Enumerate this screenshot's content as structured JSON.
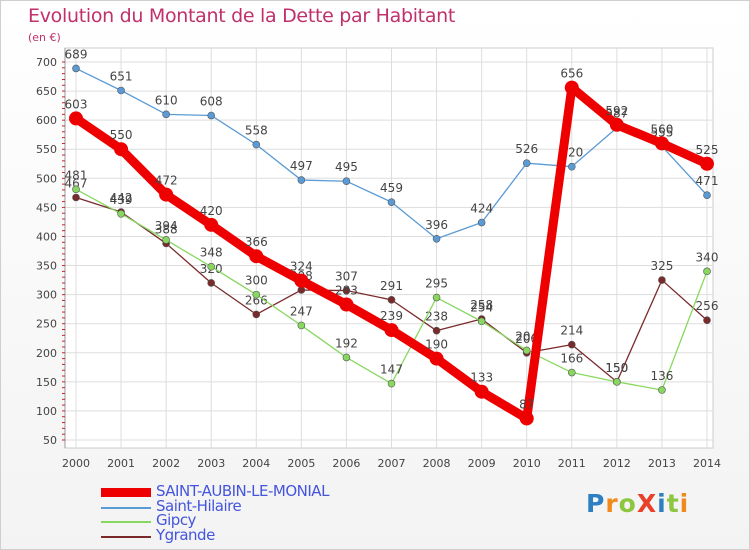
{
  "title": "Evolution du Montant de la Dette par Habitant",
  "unit_label": "(en €)",
  "logo": {
    "text": "ProXiti",
    "letters": [
      "P",
      "r",
      "o",
      "X",
      "i",
      "t",
      "i"
    ],
    "colors": [
      "#2d7fc1",
      "#f08a1c",
      "#8dc63f",
      "#e8402a",
      "#2d7fc1",
      "#8dc63f",
      "#f08a1c"
    ]
  },
  "chart_data": {
    "type": "line",
    "x": [
      "2000",
      "2001",
      "2002",
      "2003",
      "2004",
      "2005",
      "2006",
      "2007",
      "2008",
      "2009",
      "2010",
      "2011",
      "2012",
      "2013",
      "2014"
    ],
    "ylim": [
      50,
      700
    ],
    "yticks": [
      50,
      100,
      150,
      200,
      250,
      300,
      350,
      400,
      450,
      500,
      550,
      600,
      650,
      700
    ],
    "grid": true,
    "legend_position": "bottom-left",
    "series": [
      {
        "name": "Ygrande",
        "color": "#7a2a2a",
        "values": [
          467,
          442,
          388,
          320,
          266,
          308,
          307,
          291,
          238,
          258,
          200,
          214,
          150,
          325,
          256
        ]
      },
      {
        "name": "Gipcy",
        "color": "#88d860",
        "values": [
          481,
          439,
          394,
          348,
          300,
          247,
          192,
          147,
          295,
          254,
          204,
          166,
          150,
          136,
          340
        ]
      },
      {
        "name": "Saint-Hilaire",
        "color": "#5b9bd5",
        "values": [
          689,
          651,
          610,
          608,
          558,
          497,
          495,
          459,
          396,
          424,
          526,
          520,
          587,
          555,
          471
        ]
      },
      {
        "name": "SAINT-AUBIN-LE-MONIAL",
        "color": "#ee0000",
        "values": [
          603,
          550,
          472,
          420,
          366,
          324,
          283,
          239,
          190,
          133,
          87,
          656,
          592,
          560,
          525
        ]
      }
    ]
  }
}
